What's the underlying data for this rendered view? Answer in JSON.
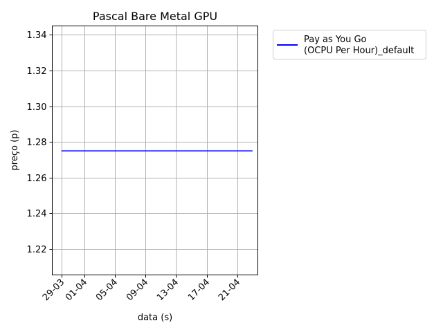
{
  "chart_data": {
    "type": "line",
    "title": "Pascal Bare Metal GPU",
    "xlabel": "data (s)",
    "ylabel": "preço (p)",
    "x_type": "date",
    "x_tick_labels": [
      "29-03",
      "01-04",
      "05-04",
      "09-04",
      "13-04",
      "17-04",
      "21-04"
    ],
    "x_tick_dates": [
      "03-29",
      "04-01",
      "04-05",
      "04-09",
      "04-13",
      "04-17",
      "04-21"
    ],
    "xlim": [
      "03-27.8",
      "04-23.7"
    ],
    "ylim": [
      1.2055,
      1.345
    ],
    "y_ticks": [
      1.22,
      1.24,
      1.26,
      1.28,
      1.3,
      1.32,
      1.34
    ],
    "y_tick_labels": [
      "1.22",
      "1.24",
      "1.26",
      "1.28",
      "1.30",
      "1.32",
      "1.34"
    ],
    "grid": true,
    "legend_placement": "outside-top-right",
    "series": [
      {
        "name": "Pay as You Go\n(OCPU Per Hour)_default",
        "legend_lines": [
          "Pay as You Go",
          "(OCPU Per Hour)_default"
        ],
        "color": "#0000ff",
        "x": [
          "03-29",
          "04-23"
        ],
        "y": [
          1.275,
          1.275
        ]
      }
    ]
  }
}
